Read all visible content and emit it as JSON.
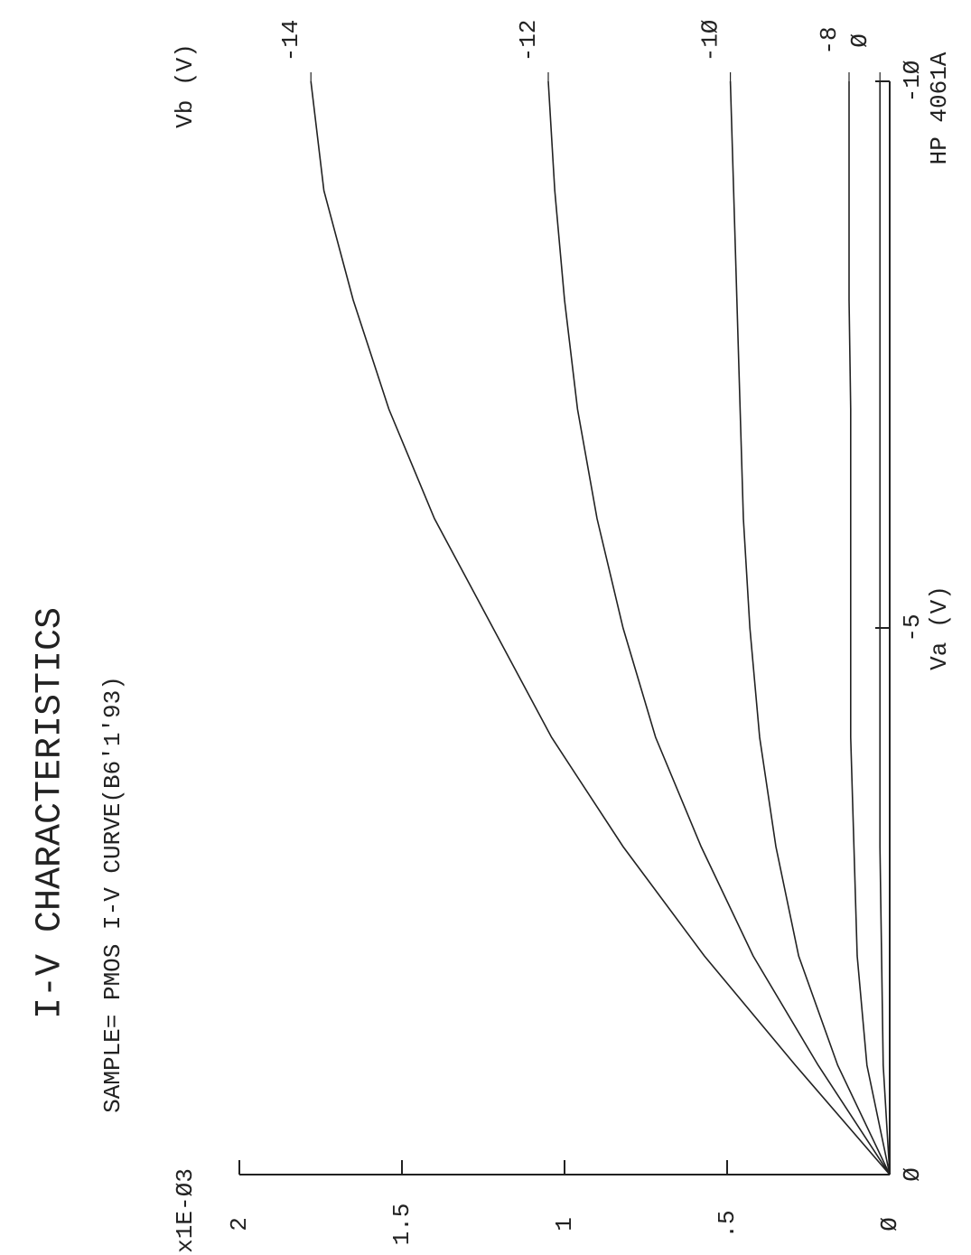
{
  "header": "HP 4061A",
  "chart_data": {
    "type": "line",
    "title": "I-V CHARACTERISTICS",
    "subtitle": "SAMPLE= PMOS I-V CURVE(B6'1'93)",
    "x_label": "Va (V)",
    "y_label": "x1E-Ø3",
    "legend_title": "Vb (V)",
    "x": [
      0,
      -1,
      -2,
      -3,
      -4,
      -5,
      -6,
      -7,
      -8,
      -9,
      -10
    ],
    "xlim": [
      0,
      -10
    ],
    "xticks": [
      {
        "value": 0,
        "label": "Ø"
      },
      -5,
      {
        "value": -10,
        "label": "-1Ø"
      }
    ],
    "ylim": [
      0,
      2
    ],
    "yticks": [
      {
        "value": 0,
        "label": "Ø"
      },
      {
        "value": 0.5,
        "label": ".5"
      },
      1,
      1.5,
      2
    ],
    "color": "#222222",
    "series": [
      {
        "name": "-14",
        "values": [
          0,
          0.29,
          0.57,
          0.82,
          1.04,
          1.22,
          1.4,
          1.54,
          1.65,
          1.74,
          1.78
        ]
      },
      {
        "name": "-12",
        "values": [
          0,
          0.22,
          0.42,
          0.58,
          0.72,
          0.82,
          0.9,
          0.96,
          1.0,
          1.03,
          1.05
        ]
      },
      {
        "name": "-1Ø",
        "values": [
          0,
          0.16,
          0.28,
          0.35,
          0.4,
          0.43,
          0.45,
          0.46,
          0.47,
          0.48,
          0.49
        ]
      },
      {
        "name": "-8",
        "values": [
          0,
          0.07,
          0.1,
          0.11,
          0.12,
          0.12,
          0.12,
          0.12,
          0.125,
          0.125,
          0.125
        ]
      },
      {
        "name": "Ø",
        "values": [
          0,
          0.02,
          0.025,
          0.03,
          0.03,
          0.03,
          0.03,
          0.03,
          0.03,
          0.03,
          0.03
        ]
      }
    ]
  }
}
